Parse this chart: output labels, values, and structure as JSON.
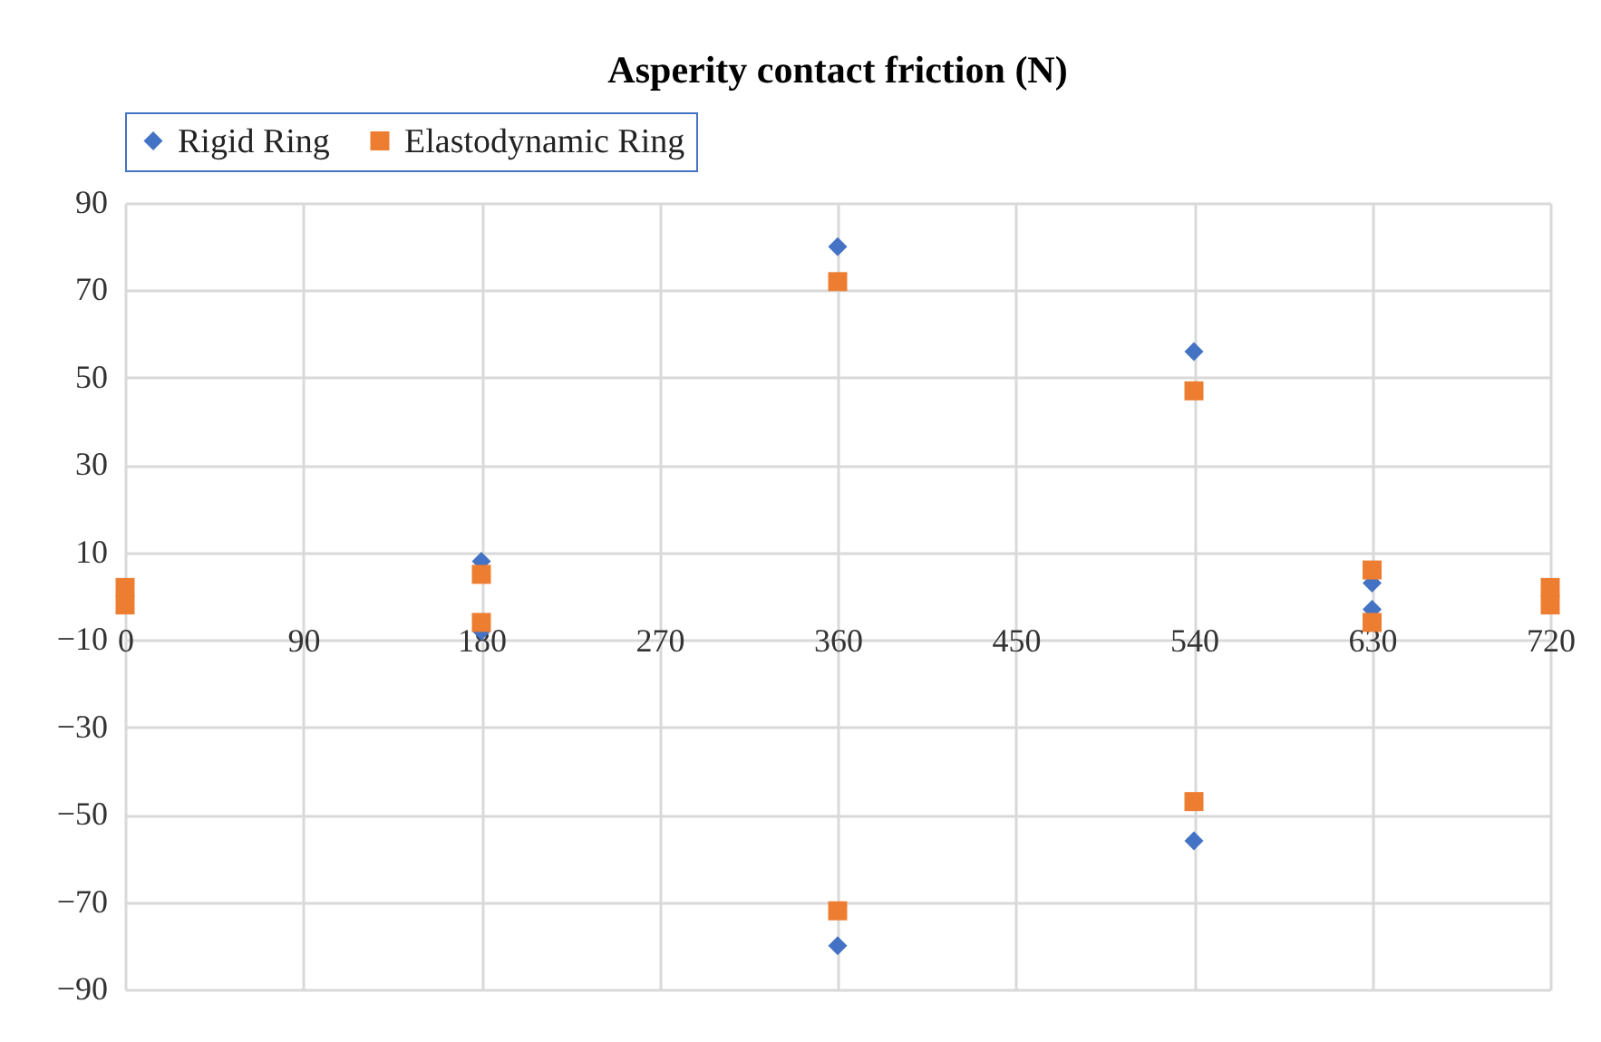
{
  "chart_data": {
    "type": "scatter",
    "title": "Asperity contact friction (N)",
    "x": [
      0,
      0,
      180,
      180,
      360,
      360,
      540,
      540,
      630,
      630,
      720,
      720
    ],
    "series": [
      {
        "name": "Rigid Ring",
        "color": "#4472c4",
        "marker": "diamond",
        "values": [
          null,
          null,
          8,
          -8,
          80,
          -80,
          56,
          -56,
          3,
          -3,
          null,
          null
        ]
      },
      {
        "name": "Elastodynamic Ring",
        "color": "#ed7d31",
        "marker": "square",
        "values": [
          2,
          -2,
          5,
          -6,
          72,
          -72,
          47,
          -47,
          6,
          -6,
          2,
          -2
        ]
      }
    ],
    "xlim": [
      0,
      720
    ],
    "xticks": [
      0,
      90,
      180,
      270,
      360,
      450,
      540,
      630,
      720
    ],
    "ylim": [
      -90,
      90
    ],
    "yticks": [
      -90,
      -70,
      -50,
      -30,
      -10,
      10,
      30,
      50,
      70,
      90
    ],
    "grid": true,
    "legend": "top"
  }
}
